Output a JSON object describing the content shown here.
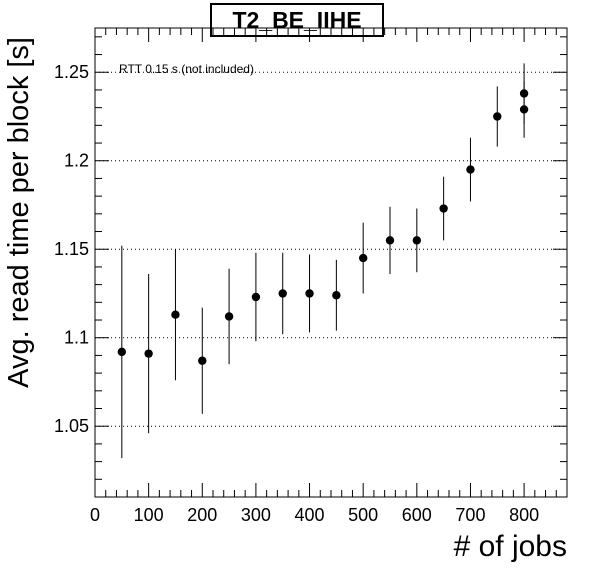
{
  "chart_data": {
    "type": "scatter",
    "title": "T2_BE_IIHE",
    "xlabel": "# of jobs",
    "ylabel": "Avg. read time per block [s]",
    "annotation": "RTT 0.15 s (not included)",
    "xlim": [
      0,
      880
    ],
    "ylim": [
      1.01,
      1.275
    ],
    "x_ticks": [
      0,
      100,
      200,
      300,
      400,
      500,
      600,
      700,
      800
    ],
    "x_tick_labels": [
      "0",
      "100",
      "200",
      "300",
      "400",
      "500",
      "600",
      "700",
      "800"
    ],
    "y_ticks": [
      1.05,
      1.1,
      1.15,
      1.2,
      1.25
    ],
    "y_tick_labels": [
      "1.05",
      "1.1",
      "1.15",
      "1.2",
      "1.25"
    ],
    "grid": "horizontal dotted at major y ticks",
    "marker_color": "#000000",
    "series": [
      {
        "points": [
          {
            "x": 50,
            "y": 1.092,
            "err": 0.06
          },
          {
            "x": 100,
            "y": 1.091,
            "err": 0.045
          },
          {
            "x": 150,
            "y": 1.113,
            "err": 0.037
          },
          {
            "x": 200,
            "y": 1.087,
            "err": 0.03
          },
          {
            "x": 250,
            "y": 1.112,
            "err": 0.027
          },
          {
            "x": 300,
            "y": 1.123,
            "err": 0.025
          },
          {
            "x": 350,
            "y": 1.125,
            "err": 0.023
          },
          {
            "x": 400,
            "y": 1.125,
            "err": 0.022
          },
          {
            "x": 450,
            "y": 1.124,
            "err": 0.02
          },
          {
            "x": 500,
            "y": 1.145,
            "err": 0.02
          },
          {
            "x": 550,
            "y": 1.155,
            "err": 0.019
          },
          {
            "x": 600,
            "y": 1.155,
            "err": 0.018
          },
          {
            "x": 650,
            "y": 1.173,
            "err": 0.018
          },
          {
            "x": 700,
            "y": 1.195,
            "err": 0.018
          },
          {
            "x": 750,
            "y": 1.225,
            "err": 0.017
          },
          {
            "x": 800,
            "y": 1.229,
            "err": 0.016
          },
          {
            "x": 800,
            "y": 1.238,
            "err": 0.017
          }
        ]
      }
    ]
  }
}
